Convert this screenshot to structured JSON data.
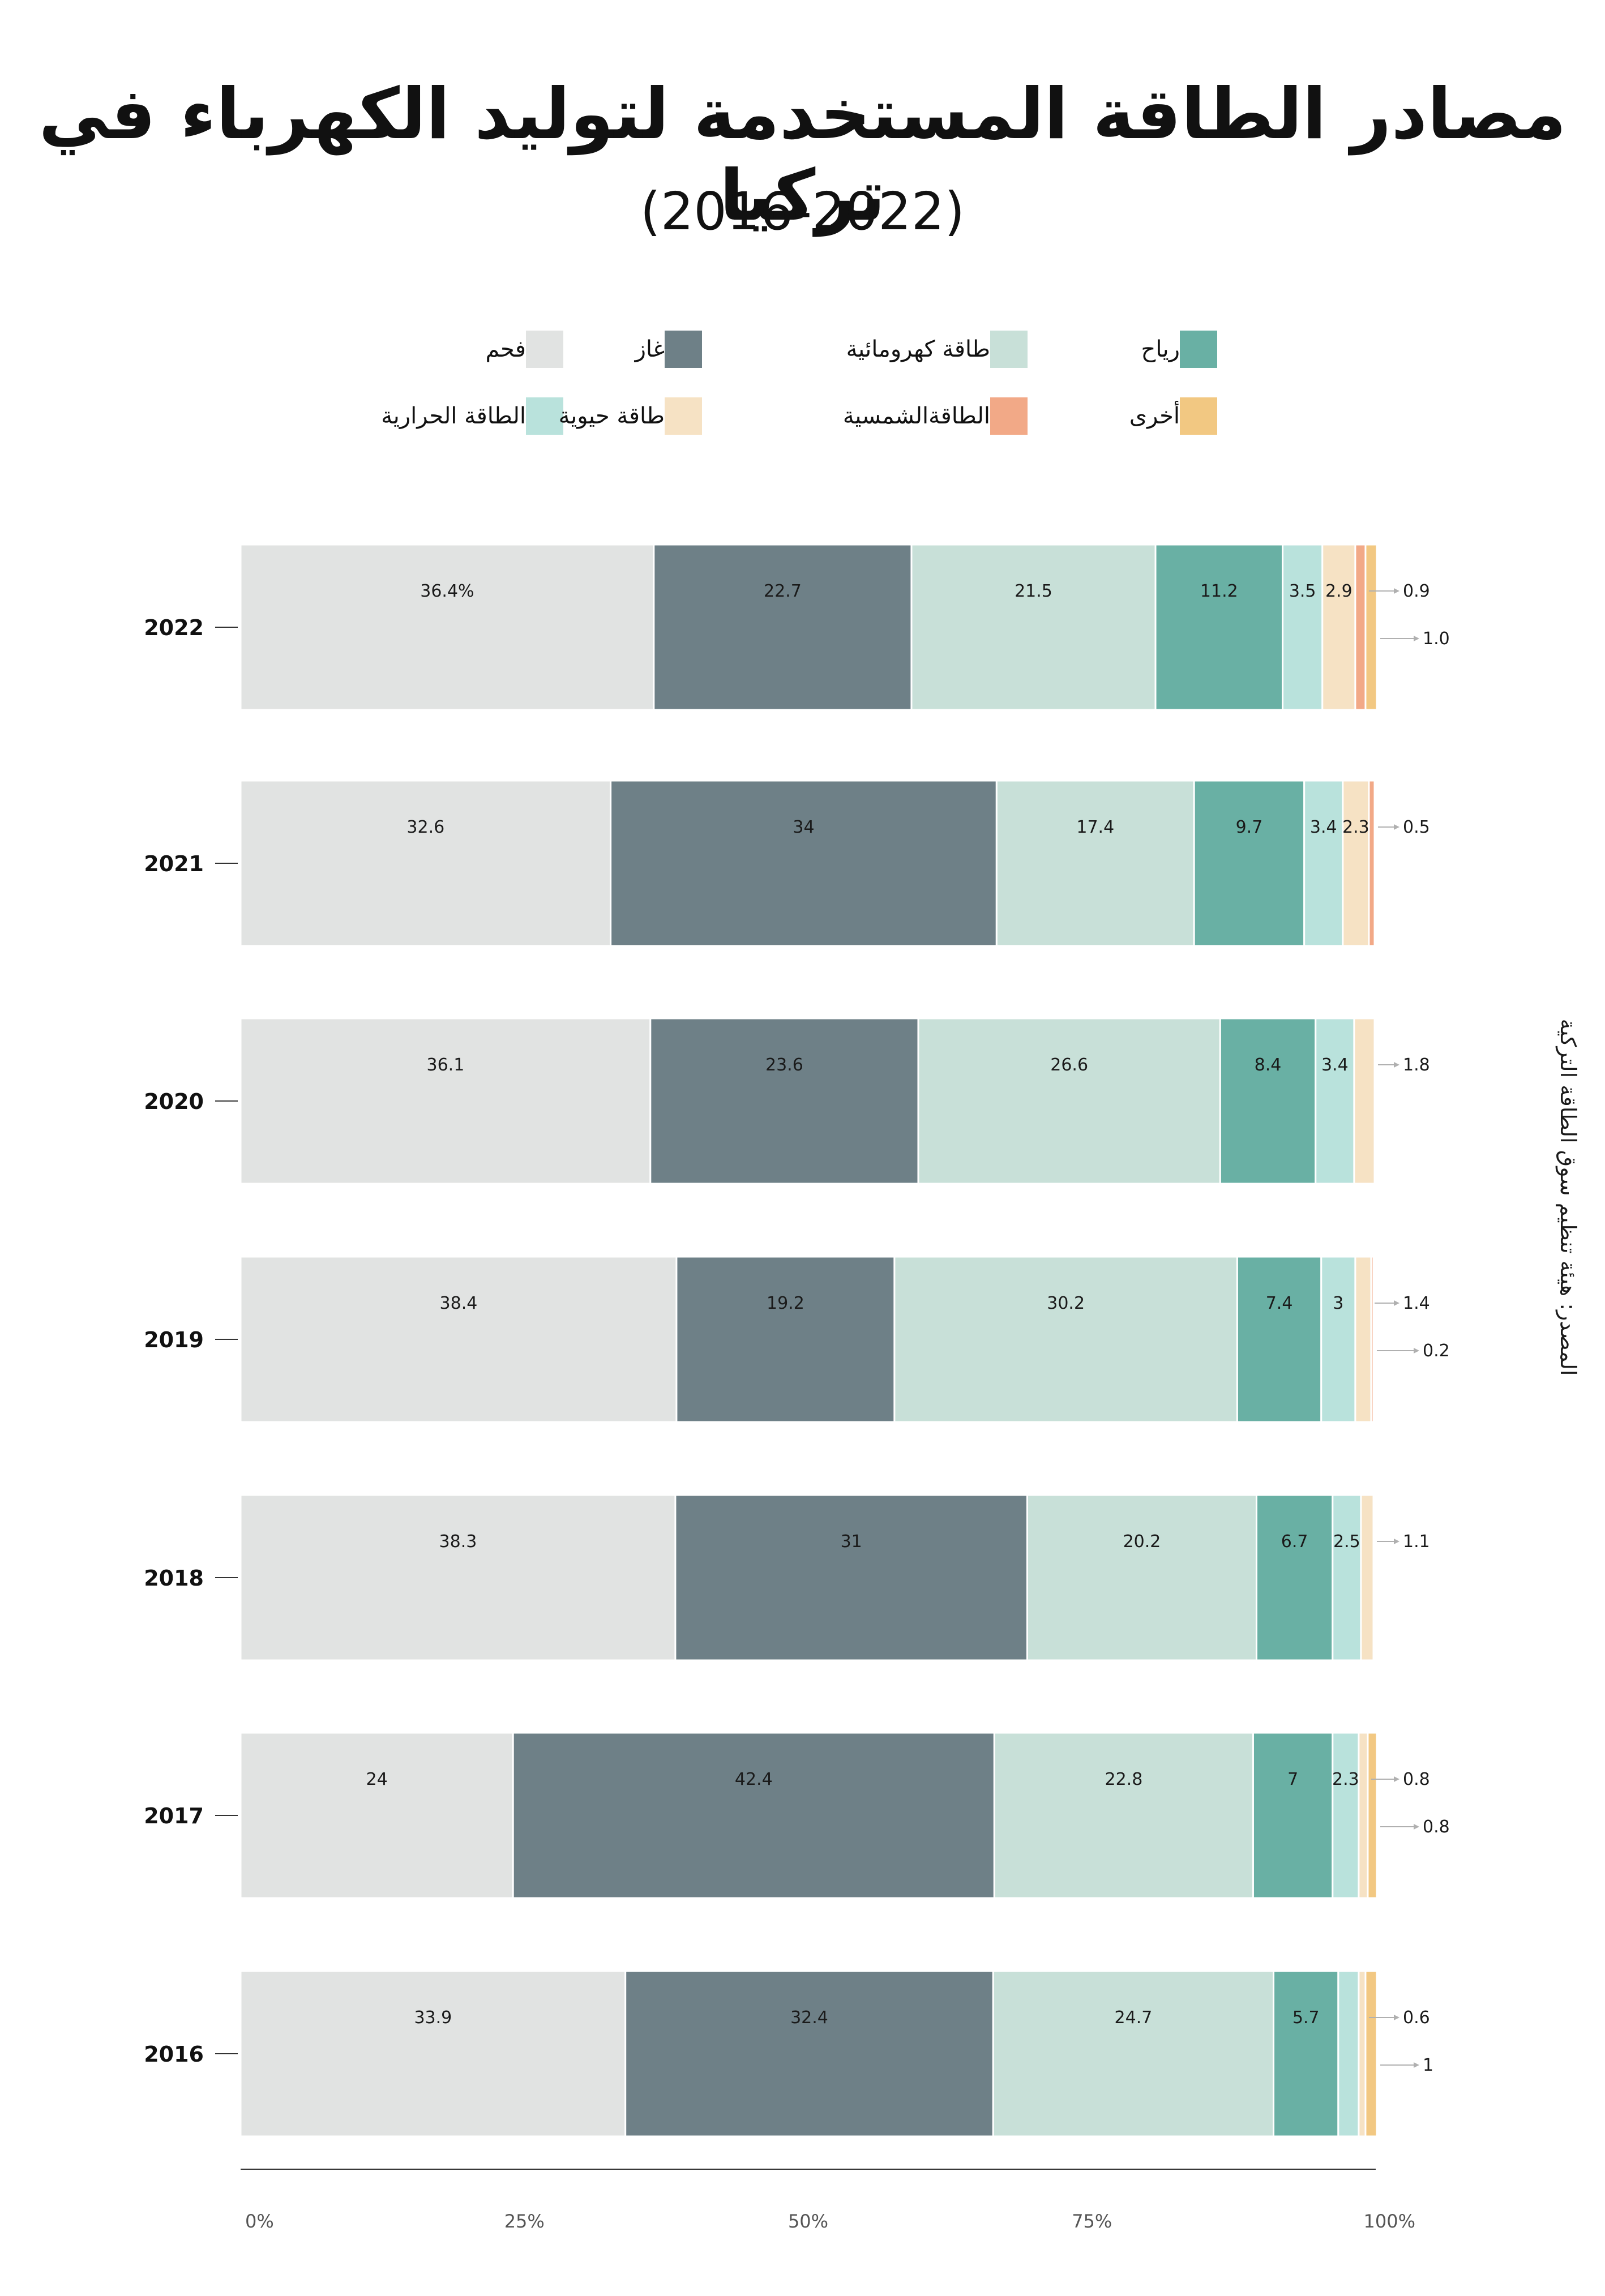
{
  "title": "مصادر الطاقة المستخدمة لتوليد الكهرباء في تركيا",
  "subtitle": "(2016-2022)",
  "source": "المصدر: هيئة تنظيم سوق الطاقة التركية",
  "legend": [
    {
      "label": "فحم",
      "color": "#e1e3e2"
    },
    {
      "label": "غاز",
      "color": "#6e8087"
    },
    {
      "label": "طاقة كهرومائية",
      "color": "#c8e0d8"
    },
    {
      "label": "رياح",
      "color": "#69b0a4"
    },
    {
      "label": "الطاقة الحرارية",
      "color": "#b9e2dc"
    },
    {
      "label": "طاقة حيوية",
      "color": "#f6e2c4"
    },
    {
      "label": "الطاقةالشمسية",
      "color": "#f2a987"
    },
    {
      "label": "أخرى",
      "color": "#f2c882"
    }
  ],
  "chart_data": {
    "type": "bar",
    "orientation": "horizontal",
    "stacked": true,
    "unit": "%",
    "categories": [
      "2022",
      "2021",
      "2020",
      "2019",
      "2018",
      "2017",
      "2016"
    ],
    "xlim": [
      0,
      100
    ],
    "x_ticks": [
      "0%",
      "25%",
      "50%",
      "75%",
      "100%"
    ],
    "series": [
      {
        "name": "فحم",
        "values": [
          36.4,
          32.6,
          36.1,
          38.4,
          38.3,
          24,
          33.9
        ],
        "labels": [
          "36.4%",
          "32.6",
          "36.1",
          "38.4",
          "38.3",
          "24",
          "33.9"
        ]
      },
      {
        "name": "غاز",
        "values": [
          22.7,
          34,
          23.6,
          19.2,
          31,
          42.4,
          32.4
        ],
        "labels": [
          "22.7",
          "34",
          "23.6",
          "19.2",
          "31",
          "42.4",
          "32.4"
        ]
      },
      {
        "name": "طاقة كهرومائية",
        "values": [
          21.5,
          17.4,
          26.6,
          30.2,
          20.2,
          22.8,
          24.7
        ],
        "labels": [
          "21.5",
          "17.4",
          "26.6",
          "30.2",
          "20.2",
          "22.8",
          "24.7"
        ]
      },
      {
        "name": "رياح",
        "values": [
          11.2,
          9.7,
          8.4,
          7.4,
          6.7,
          7,
          5.7
        ],
        "labels": [
          "11.2",
          "9.7",
          "8.4",
          "7.4",
          "6.7",
          "7",
          "5.7"
        ]
      },
      {
        "name": "الطاقة الحرارية",
        "values": [
          3.5,
          3.4,
          3.4,
          3,
          2.5,
          2.3,
          1.8
        ],
        "labels": [
          "3.5",
          "3.4",
          "3.4",
          "3",
          "2.5",
          "2.3",
          ""
        ]
      },
      {
        "name": "طاقة حيوية",
        "values": [
          2.9,
          2.3,
          1.8,
          1.4,
          1.1,
          0.8,
          0.6
        ],
        "labels": [
          "2.9",
          "2.3",
          "1.8",
          "1.4",
          "1.1",
          "0.8",
          "0.6"
        ]
      },
      {
        "name": "الطاقةالشمسية",
        "values": [
          0.9,
          0.5,
          0,
          0.2,
          0,
          0,
          0
        ],
        "labels": [
          "0.9",
          "0.5",
          "",
          "0.2",
          "",
          "",
          ""
        ]
      },
      {
        "name": "أخرى",
        "values": [
          1.0,
          0,
          0,
          0,
          0,
          0.8,
          1
        ],
        "labels": [
          "1.0",
          "",
          "",
          "",
          "",
          "0.8",
          "1"
        ]
      }
    ]
  }
}
